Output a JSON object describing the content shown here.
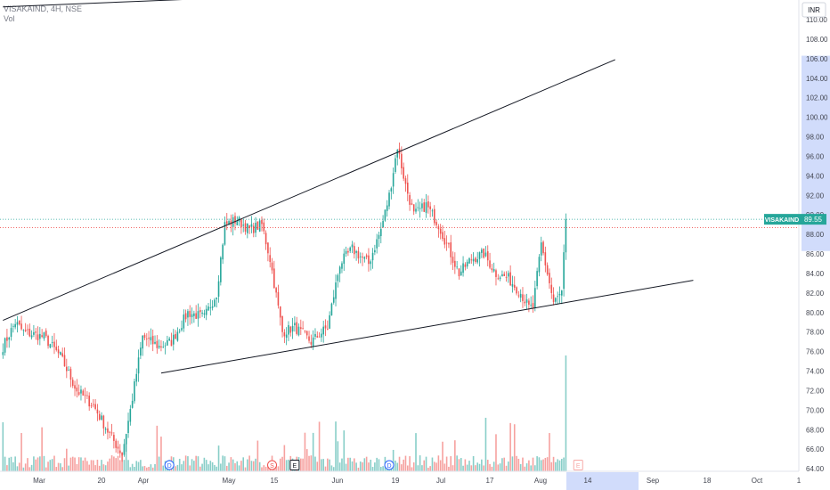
{
  "legend": {
    "symbol_line": "VISAKAIND, 4H, NSE",
    "volume_label": "Vol"
  },
  "currency_button": "INR",
  "chart_data": {
    "type": "candlestick",
    "symbol": "VISAKAIND",
    "exchange": "NSE",
    "timeframe": "4H",
    "y_axis": {
      "unit": "INR",
      "range": [
        63.5,
        111.5
      ],
      "ticks": [
        "110.00",
        "108.00",
        "106.00",
        "104.00",
        "102.00",
        "100.00",
        "98.00",
        "96.00",
        "94.00",
        "92.00",
        "90.00",
        "88.00",
        "86.00",
        "84.00",
        "82.00",
        "80.00",
        "78.00",
        "76.00",
        "74.00",
        "72.00",
        "70.00",
        "68.00",
        "66.00",
        "64.00"
      ],
      "highlight_range": [
        86.3,
        106.3
      ]
    },
    "x_axis": {
      "labels": [
        "Mar",
        "20",
        "Apr",
        "May",
        "15",
        "Jun",
        "19",
        "Jul",
        "17",
        "Aug",
        "14",
        "Sep",
        "18",
        "Oct",
        "1"
      ],
      "highlight_label": "14"
    },
    "last_price": {
      "label": "VISAKAIND",
      "value": "89.55",
      "numeric": 89.55
    },
    "reference_line": 88.7,
    "up_color": "#26a69a",
    "down_color": "#ef5350",
    "anchors": [
      {
        "bar": 0,
        "price": 76.5
      },
      {
        "bar": 6,
        "price": 79.0
      },
      {
        "bar": 10,
        "price": 78.0
      },
      {
        "bar": 20,
        "price": 77.5
      },
      {
        "bar": 28,
        "price": 75.5
      },
      {
        "bar": 36,
        "price": 72.0
      },
      {
        "bar": 44,
        "price": 70.5
      },
      {
        "bar": 52,
        "price": 67.5
      },
      {
        "bar": 58,
        "price": 65.5
      },
      {
        "bar": 62,
        "price": 70.0
      },
      {
        "bar": 68,
        "price": 77.5
      },
      {
        "bar": 76,
        "price": 76.5
      },
      {
        "bar": 82,
        "price": 77.0
      },
      {
        "bar": 90,
        "price": 80.0
      },
      {
        "bar": 98,
        "price": 79.5
      },
      {
        "bar": 104,
        "price": 82.0
      },
      {
        "bar": 108,
        "price": 89.0
      },
      {
        "bar": 114,
        "price": 89.5
      },
      {
        "bar": 120,
        "price": 88.5
      },
      {
        "bar": 126,
        "price": 89.0
      },
      {
        "bar": 130,
        "price": 85.5
      },
      {
        "bar": 132,
        "price": 83.0
      },
      {
        "bar": 136,
        "price": 78.0
      },
      {
        "bar": 142,
        "price": 78.5
      },
      {
        "bar": 150,
        "price": 77.0
      },
      {
        "bar": 158,
        "price": 78.5
      },
      {
        "bar": 164,
        "price": 85.0
      },
      {
        "bar": 170,
        "price": 86.5
      },
      {
        "bar": 178,
        "price": 85.0
      },
      {
        "bar": 184,
        "price": 88.5
      },
      {
        "bar": 188,
        "price": 92.0
      },
      {
        "bar": 192,
        "price": 97.0
      },
      {
        "bar": 196,
        "price": 93.0
      },
      {
        "bar": 200,
        "price": 90.0
      },
      {
        "bar": 206,
        "price": 91.0
      },
      {
        "bar": 212,
        "price": 89.0
      },
      {
        "bar": 218,
        "price": 86.0
      },
      {
        "bar": 222,
        "price": 84.0
      },
      {
        "bar": 228,
        "price": 85.5
      },
      {
        "bar": 234,
        "price": 86.0
      },
      {
        "bar": 240,
        "price": 84.0
      },
      {
        "bar": 246,
        "price": 83.5
      },
      {
        "bar": 252,
        "price": 82.0
      },
      {
        "bar": 256,
        "price": 80.5
      },
      {
        "bar": 258,
        "price": 80.5
      },
      {
        "bar": 262,
        "price": 87.0
      },
      {
        "bar": 266,
        "price": 83.0
      },
      {
        "bar": 268,
        "price": 81.0
      },
      {
        "bar": 272,
        "price": 82.0
      },
      {
        "bar": 274,
        "price": 89.5
      }
    ],
    "total_bars": 275,
    "trendlines": [
      {
        "from": {
          "bar": 0,
          "price": 79.2
        },
        "to": {
          "bar": 298,
          "price": 105.9
        }
      },
      {
        "from": {
          "bar": 77,
          "price": 73.8
        },
        "to": {
          "bar": 336,
          "price": 83.3
        }
      },
      {
        "from": {
          "bar": 0,
          "price": 111.3
        },
        "to": {
          "bar": 116,
          "price": 112.3
        }
      }
    ],
    "events": [
      {
        "type": "dividend",
        "letter": "D",
        "bar": 81
      },
      {
        "type": "split",
        "letter": "S",
        "bar": 131
      },
      {
        "type": "earnings",
        "letter": "E",
        "bar": 142
      },
      {
        "type": "dividend",
        "letter": "D",
        "bar": 188
      },
      {
        "type": "earnings",
        "letter": "E",
        "bar": 280
      }
    ]
  }
}
